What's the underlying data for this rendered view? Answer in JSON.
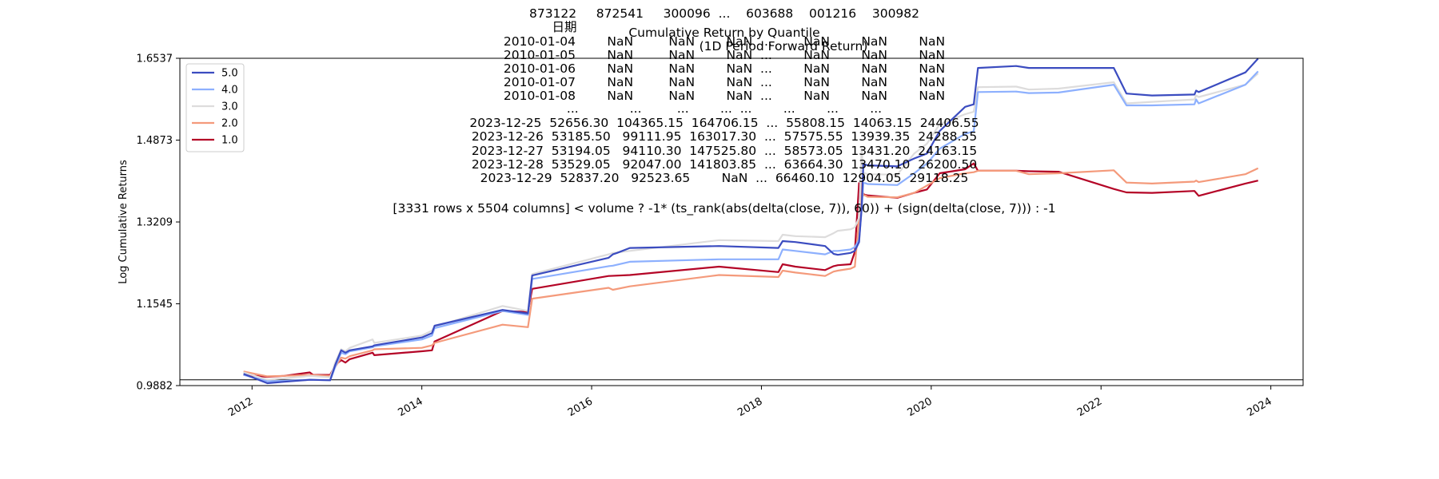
{
  "chart_data": {
    "type": "line",
    "title": "Cumulative Return by Quantile",
    "subtitle": "(1D Period Forward Return)",
    "ylabel": "Log Cumulative Returns",
    "xlabel": "",
    "yticks": [
      "0.9882",
      "1.1545",
      "1.3209",
      "1.4873",
      "1.6537"
    ],
    "ylim": [
      0.9882,
      1.6537
    ],
    "xticks": [
      "2012",
      "2014",
      "2016",
      "2018",
      "2020",
      "2022",
      "2024"
    ],
    "xlim": [
      2011.15,
      2024.38
    ],
    "grid": false,
    "legend_position": "top-left",
    "baseline": 1.0,
    "overlay_text": [
      "873122     872541     300096  ...    603688    001216    300982",
      "日期",
      "2010-01-04        NaN         NaN        NaN  ...        NaN        NaN        NaN",
      "2010-01-05        NaN         NaN        NaN  ...        NaN        NaN        NaN",
      "2010-01-06        NaN         NaN        NaN  ...        NaN        NaN        NaN",
      "2010-01-07        NaN         NaN        NaN  ...        NaN        NaN        NaN",
      "2010-01-08        NaN         NaN        NaN  ...        NaN        NaN        NaN",
      "...             ...         ...        ...  ...        ...        ...        ...",
      "2023-12-25  52656.30  104365.15  164706.15  ...  55808.15  14063.15  24406.55",
      "2023-12-26  53185.50   99111.95  163017.30  ...  57575.55  13939.35  24288.55",
      "2023-12-27  53194.05   94110.30  147525.80  ...  58573.05  13431.20  24163.15",
      "2023-12-28  53529.05   92047.00  141803.85  ...  63664.30  13470.10  26200.50",
      "2023-12-29  52837.20   92523.65        NaN  ...  66460.10  12904.05  29118.25",
      "",
      "[3331 rows x 5504 columns] < volume ? -1* (ts_rank(abs(delta(close, 7)), 60)) + (sign(delta(close, 7))) : -1"
    ],
    "series": [
      {
        "name": "5.0",
        "color": "#3b4cc0",
        "x": [
          2011.9,
          2012.18,
          2012.38,
          2012.68,
          2012.92,
          2012.98,
          2013.05,
          2013.1,
          2013.15,
          2013.42,
          2013.44,
          2014.0,
          2014.12,
          2014.15,
          2014.95,
          2015.25,
          2015.3,
          2016.2,
          2016.25,
          2016.3,
          2016.45,
          2017.5,
          2018.2,
          2018.25,
          2018.4,
          2018.75,
          2018.85,
          2018.9,
          2019.05,
          2019.1,
          2019.15,
          2019.18,
          2019.2,
          2019.22,
          2019.25,
          2019.6,
          2019.8,
          2019.95,
          2020.1,
          2020.4,
          2020.5,
          2020.55,
          2021.0,
          2021.15,
          2021.5,
          2022.15,
          2022.3,
          2022.6,
          2023.1,
          2023.12,
          2023.15,
          2023.7,
          2023.85
        ],
        "y": [
          1.012,
          0.993,
          0.996,
          1.0,
          0.999,
          1.03,
          1.06,
          1.055,
          1.06,
          1.068,
          1.07,
          1.086,
          1.095,
          1.11,
          1.142,
          1.135,
          1.212,
          1.248,
          1.255,
          1.258,
          1.268,
          1.272,
          1.268,
          1.282,
          1.28,
          1.272,
          1.256,
          1.254,
          1.258,
          1.262,
          1.28,
          1.35,
          1.438,
          1.438,
          1.436,
          1.434,
          1.45,
          1.46,
          1.506,
          1.555,
          1.56,
          1.634,
          1.638,
          1.634,
          1.634,
          1.634,
          1.582,
          1.578,
          1.58,
          1.588,
          1.585,
          1.625,
          1.653
        ]
      },
      {
        "name": "4.0",
        "color": "#8db0fe",
        "x": [
          2011.9,
          2012.18,
          2012.38,
          2012.68,
          2012.92,
          2012.98,
          2013.05,
          2013.1,
          2013.15,
          2013.42,
          2013.44,
          2014.0,
          2014.12,
          2014.15,
          2014.95,
          2015.25,
          2015.3,
          2016.2,
          2016.25,
          2016.45,
          2017.5,
          2018.2,
          2018.25,
          2018.4,
          2018.75,
          2018.85,
          2018.9,
          2019.05,
          2019.1,
          2019.15,
          2019.18,
          2019.2,
          2019.22,
          2019.25,
          2019.6,
          2019.8,
          2019.95,
          2020.1,
          2020.4,
          2020.5,
          2020.55,
          2021.0,
          2021.15,
          2021.5,
          2022.15,
          2022.3,
          2022.6,
          2023.1,
          2023.12,
          2023.15,
          2023.7,
          2023.85
        ],
        "y": [
          1.01,
          0.997,
          0.998,
          1.0,
          0.999,
          1.026,
          1.055,
          1.052,
          1.058,
          1.066,
          1.068,
          1.082,
          1.09,
          1.105,
          1.14,
          1.132,
          1.205,
          1.231,
          1.232,
          1.24,
          1.245,
          1.245,
          1.265,
          1.262,
          1.255,
          1.262,
          1.262,
          1.265,
          1.27,
          1.285,
          1.345,
          1.4,
          1.4,
          1.398,
          1.396,
          1.42,
          1.44,
          1.47,
          1.5,
          1.505,
          1.585,
          1.586,
          1.583,
          1.584,
          1.6,
          1.558,
          1.558,
          1.56,
          1.57,
          1.562,
          1.6,
          1.627
        ]
      },
      {
        "name": "3.0",
        "color": "#dddcdc",
        "x": [
          2011.9,
          2012.18,
          2012.38,
          2012.68,
          2012.92,
          2012.98,
          2013.05,
          2013.1,
          2013.15,
          2013.42,
          2013.44,
          2014.0,
          2014.12,
          2014.15,
          2014.95,
          2015.25,
          2015.3,
          2016.2,
          2016.25,
          2016.45,
          2017.5,
          2018.2,
          2018.25,
          2018.4,
          2018.75,
          2018.85,
          2018.9,
          2019.05,
          2019.1,
          2019.15,
          2019.18,
          2019.2,
          2019.22,
          2019.25,
          2019.6,
          2019.8,
          2019.95,
          2020.1,
          2020.4,
          2020.5,
          2020.55,
          2021.0,
          2021.15,
          2021.5,
          2022.15,
          2022.3,
          2022.6,
          2023.1,
          2023.12,
          2023.15,
          2023.7,
          2023.85
        ],
        "y": [
          1.015,
          1.0,
          1.003,
          1.008,
          1.005,
          1.035,
          1.062,
          1.058,
          1.065,
          1.082,
          1.075,
          1.09,
          1.1,
          1.108,
          1.15,
          1.14,
          1.215,
          1.255,
          1.258,
          1.262,
          1.284,
          1.282,
          1.295,
          1.292,
          1.29,
          1.298,
          1.303,
          1.306,
          1.31,
          1.33,
          1.47,
          1.42,
          1.42,
          1.418,
          1.417,
          1.46,
          1.48,
          1.52,
          1.54,
          1.545,
          1.595,
          1.596,
          1.59,
          1.592,
          1.605,
          1.562,
          1.565,
          1.57,
          1.578,
          1.575,
          1.6,
          1.623
        ]
      },
      {
        "name": "2.0",
        "color": "#f49a7b",
        "x": [
          2011.9,
          2012.18,
          2012.38,
          2012.68,
          2012.92,
          2012.98,
          2013.05,
          2013.1,
          2013.15,
          2013.42,
          2013.44,
          2014.0,
          2014.12,
          2014.15,
          2014.95,
          2015.25,
          2015.3,
          2016.2,
          2016.25,
          2016.45,
          2017.5,
          2018.2,
          2018.25,
          2018.4,
          2018.75,
          2018.85,
          2018.9,
          2019.05,
          2019.1,
          2019.15,
          2019.18,
          2019.2,
          2019.22,
          2019.25,
          2019.6,
          2019.8,
          2019.95,
          2020.1,
          2020.4,
          2020.5,
          2020.55,
          2021.0,
          2021.15,
          2021.5,
          2022.15,
          2022.3,
          2022.6,
          2023.1,
          2023.12,
          2023.15,
          2023.7,
          2023.85
        ],
        "y": [
          1.017,
          1.007,
          1.008,
          1.01,
          1.008,
          1.026,
          1.045,
          1.043,
          1.048,
          1.06,
          1.062,
          1.065,
          1.07,
          1.075,
          1.112,
          1.107,
          1.165,
          1.187,
          1.183,
          1.19,
          1.213,
          1.209,
          1.222,
          1.218,
          1.211,
          1.22,
          1.222,
          1.226,
          1.23,
          1.33,
          1.4,
          1.375,
          1.375,
          1.372,
          1.371,
          1.38,
          1.395,
          1.41,
          1.42,
          1.422,
          1.425,
          1.425,
          1.418,
          1.42,
          1.426,
          1.401,
          1.399,
          1.403,
          1.405,
          1.402,
          1.418,
          1.43
        ]
      },
      {
        "name": "1.0",
        "color": "#b40426",
        "x": [
          2011.9,
          2012.18,
          2012.38,
          2012.68,
          2012.72,
          2012.92,
          2012.95,
          2012.98,
          2013.05,
          2013.1,
          2013.15,
          2013.42,
          2013.44,
          2014.0,
          2014.12,
          2014.15,
          2014.95,
          2015.25,
          2015.3,
          2016.2,
          2016.45,
          2017.5,
          2018.2,
          2018.25,
          2018.4,
          2018.75,
          2018.85,
          2018.9,
          2019.05,
          2019.1,
          2019.15,
          2019.18,
          2019.2,
          2019.22,
          2019.25,
          2019.6,
          2019.8,
          2019.95,
          2020.1,
          2020.4,
          2020.5,
          2020.55,
          2021.0,
          2021.15,
          2021.5,
          2022.15,
          2022.3,
          2022.6,
          2023.1,
          2023.12,
          2023.15,
          2023.7,
          2023.85
        ],
        "y": [
          1.01,
          1.006,
          1.008,
          1.015,
          1.01,
          1.01,
          1.02,
          1.03,
          1.04,
          1.035,
          1.042,
          1.055,
          1.05,
          1.058,
          1.06,
          1.078,
          1.14,
          1.138,
          1.185,
          1.211,
          1.213,
          1.23,
          1.219,
          1.235,
          1.23,
          1.223,
          1.231,
          1.233,
          1.235,
          1.26,
          1.4,
          1.378,
          1.378,
          1.376,
          1.375,
          1.37,
          1.38,
          1.387,
          1.42,
          1.428,
          1.44,
          1.425,
          1.425,
          1.424,
          1.423,
          1.388,
          1.381,
          1.38,
          1.384,
          1.38,
          1.374,
          1.399,
          1.405
        ]
      }
    ]
  }
}
